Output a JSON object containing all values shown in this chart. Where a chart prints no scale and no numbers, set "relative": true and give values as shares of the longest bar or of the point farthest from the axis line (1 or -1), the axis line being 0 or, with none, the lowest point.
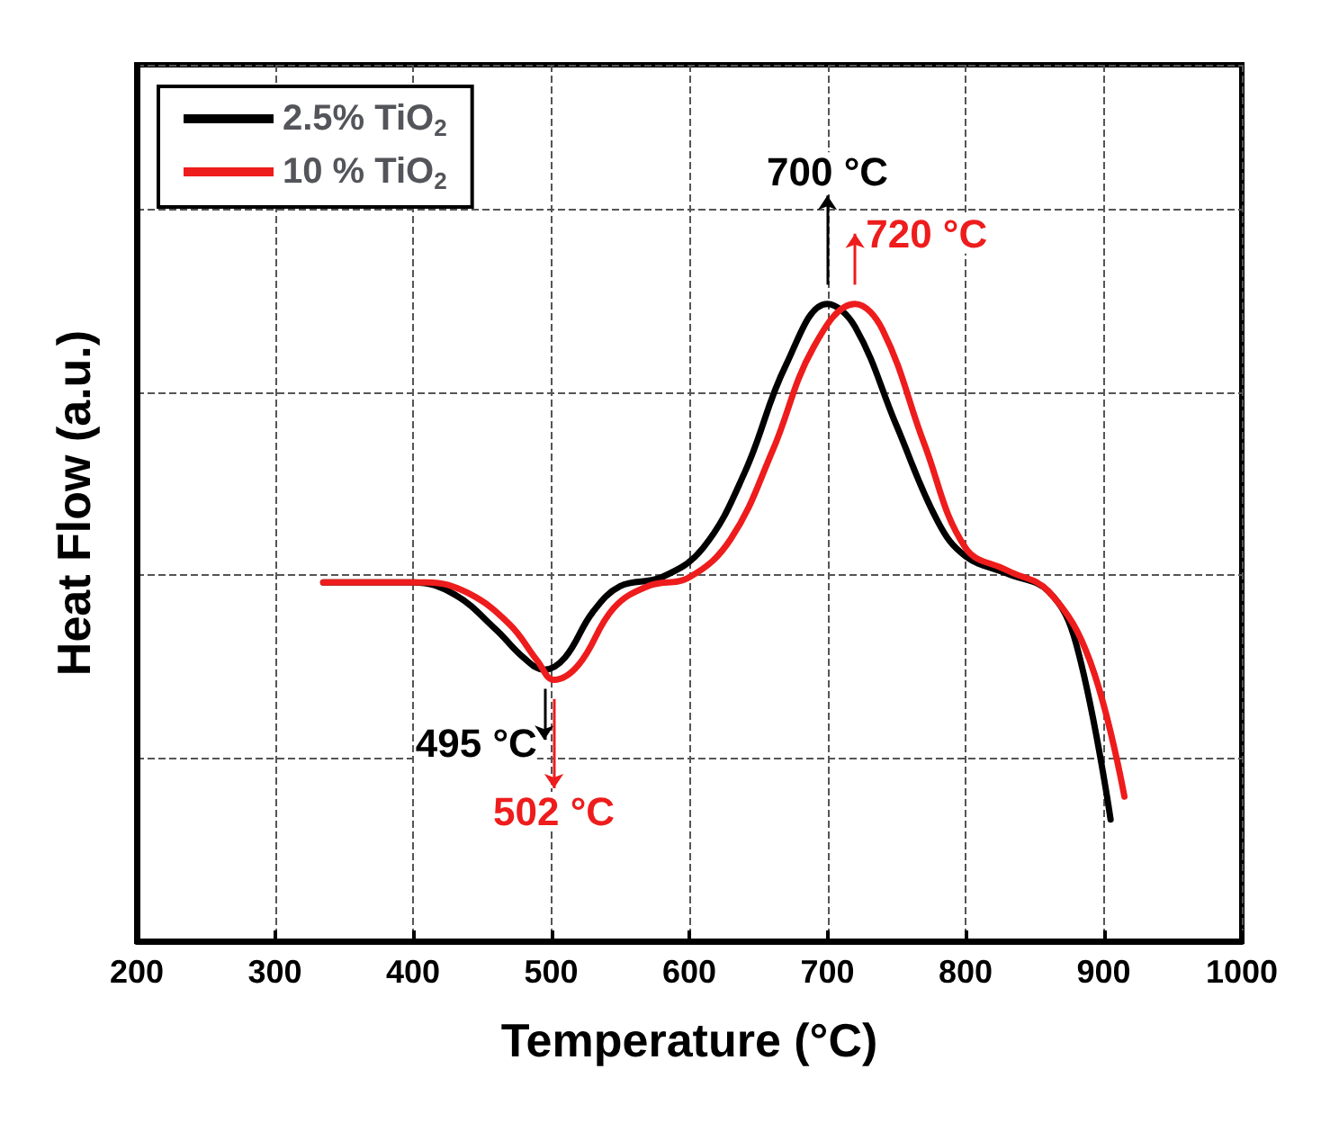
{
  "chart_data": {
    "type": "line",
    "relative": true,
    "xlabel": "Temperature (°C)",
    "ylabel": "Heat Flow (a.u.)",
    "xlim": [
      200,
      1000
    ],
    "xticks": [
      200,
      300,
      400,
      500,
      600,
      700,
      800,
      900,
      1000
    ],
    "grid": true,
    "legend": "top left",
    "marker": "none",
    "line_style": "solid",
    "series": [
      {
        "name": "2.5% TiO$_{2}$",
        "color": "#000000",
        "x": [
          335,
          400,
          430,
          460,
          480,
          495,
          510,
          530,
          550,
          580,
          610,
          640,
          670,
          700,
          720,
          750,
          780,
          800,
          830,
          860,
          880,
          905
        ],
        "values": [
          0.563,
          0.563,
          0.544,
          0.489,
          0.445,
          0.426,
          0.445,
          0.516,
          0.557,
          0.571,
          0.617,
          0.735,
          0.904,
          1,
          0.964,
          0.809,
          0.658,
          0.604,
          0.577,
          0.549,
          0.467,
          0.191
        ]
      },
      {
        "name": "10 % TiO$_{2}$",
        "color": "#ee1c1c",
        "x": [
          335,
          410,
          440,
          470,
          490,
          502,
          520,
          545,
          570,
          600,
          630,
          660,
          690,
          720,
          740,
          770,
          800,
          830,
          860,
          890,
          915
        ],
        "values": [
          0.563,
          0.563,
          0.546,
          0.497,
          0.44,
          0.41,
          0.434,
          0.522,
          0.557,
          0.571,
          0.631,
          0.768,
          0.932,
          1,
          0.959,
          0.781,
          0.617,
          0.582,
          0.549,
          0.44,
          0.227
        ]
      }
    ],
    "annotations": [
      {
        "text": "700 °C",
        "x": 700,
        "y": 1
      },
      {
        "text": "720 °C",
        "x": 720,
        "y": 1
      },
      {
        "text": "495 °C",
        "x": 495,
        "y": 0.426
      },
      {
        "text": "502 °C",
        "x": 502,
        "y": 0.41
      }
    ]
  }
}
